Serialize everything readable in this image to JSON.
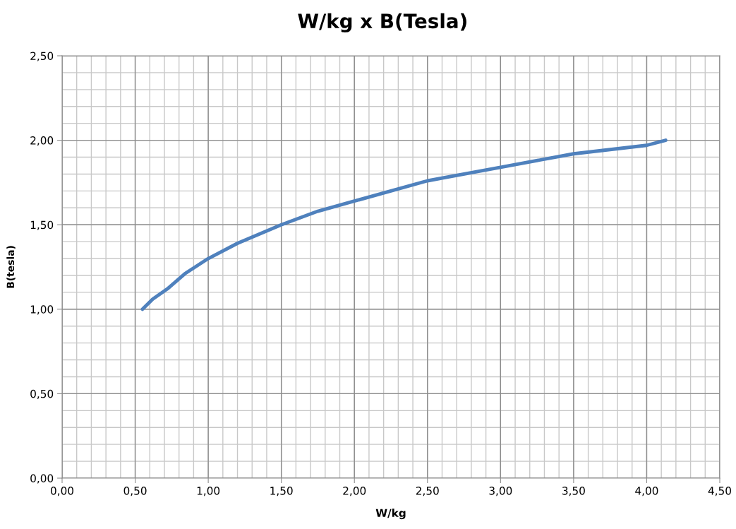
{
  "chart_data": {
    "type": "line",
    "title": "W/kg x B(Tesla)",
    "xlabel": "W/kg",
    "ylabel": "B(tesla)",
    "xlim": [
      0,
      4.5
    ],
    "ylim": [
      0,
      2.5
    ],
    "xticks": [
      {
        "value": 0,
        "label": "0,00"
      },
      {
        "value": 0.5,
        "label": "0,50"
      },
      {
        "value": 1,
        "label": "1,00"
      },
      {
        "value": 1.5,
        "label": "1,50"
      },
      {
        "value": 2,
        "label": "2,00"
      },
      {
        "value": 2.5,
        "label": "2,50"
      },
      {
        "value": 3,
        "label": "3,00"
      },
      {
        "value": 3.5,
        "label": "3,50"
      },
      {
        "value": 4,
        "label": "4,00"
      },
      {
        "value": 4.5,
        "label": "4,50"
      }
    ],
    "yticks": [
      {
        "value": 0,
        "label": "0,00"
      },
      {
        "value": 0.5,
        "label": "0,50"
      },
      {
        "value": 1,
        "label": "1,00"
      },
      {
        "value": 1.5,
        "label": "1,50"
      },
      {
        "value": 2,
        "label": "2,00"
      },
      {
        "value": 2.5,
        "label": "2,50"
      }
    ],
    "grid": true,
    "marker": "none",
    "line_style": "solid",
    "series": [
      {
        "color": "#4f81bd",
        "x": [
          0.55,
          0.62,
          0.72,
          0.84,
          1.0,
          1.2,
          1.5,
          1.75,
          2.0,
          2.5,
          3.0,
          3.5,
          4.0,
          4.13
        ],
        "values": [
          1.0,
          1.06,
          1.12,
          1.21,
          1.3,
          1.39,
          1.5,
          1.58,
          1.64,
          1.76,
          1.84,
          1.92,
          1.97,
          2.0
        ]
      }
    ]
  }
}
